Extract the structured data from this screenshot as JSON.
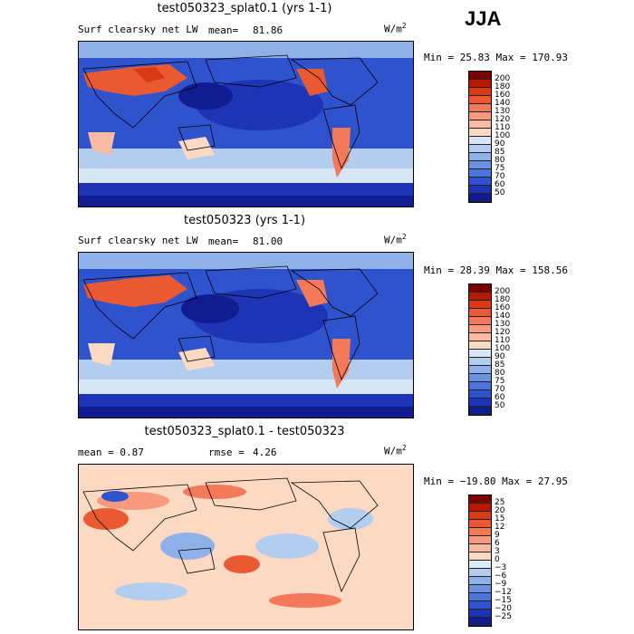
{
  "season": "JJA",
  "panels": [
    {
      "title": "test050323_splat0.1 (yrs 1-1)",
      "left_label": "Surf clearsky net LW",
      "stat_label": "mean=",
      "stat_value": "81.86",
      "units": "W/m",
      "units_exp": "2",
      "minmax": "Min =  25.83 Max = 170.93"
    },
    {
      "title": "test050323 (yrs 1-1)",
      "left_label": "Surf clearsky net LW",
      "stat_label": "mean=",
      "stat_value": "81.00",
      "units": "W/m",
      "units_exp": "2",
      "minmax": "Min =  28.39 Max = 158.56"
    },
    {
      "title": "test050323_splat0.1 - test050323",
      "left_label": "mean =   0.87",
      "stat_label": "rmse =",
      "stat_value": "4.26",
      "units": "W/m",
      "units_exp": "2",
      "minmax": "Min = −19.80 Max =  27.95"
    }
  ],
  "chart_data": [
    {
      "type": "heatmap",
      "title": "test050323_splat0.1 (yrs 1-1)",
      "variable": "Surf clearsky net LW",
      "units": "W/m^2",
      "mean": 81.86,
      "min": 25.83,
      "max": 170.93,
      "levels": [
        200,
        180,
        160,
        140,
        130,
        120,
        110,
        100,
        90,
        85,
        80,
        75,
        70,
        60,
        50
      ],
      "colors": [
        "#7a0000",
        "#b51a00",
        "#d93a13",
        "#ea5a32",
        "#f3795a",
        "#f89a7e",
        "#fbbaa2",
        "#fcd9c3",
        "#d6e6f4",
        "#b3cdee",
        "#8fb0e8",
        "#6c93e2",
        "#4c74db",
        "#2f52cd",
        "#1d34b6",
        "#101c8f"
      ]
    },
    {
      "type": "heatmap",
      "title": "test050323 (yrs 1-1)",
      "variable": "Surf clearsky net LW",
      "units": "W/m^2",
      "mean": 81.0,
      "min": 28.39,
      "max": 158.56,
      "levels": [
        200,
        180,
        160,
        140,
        130,
        120,
        110,
        100,
        90,
        85,
        80,
        75,
        70,
        60,
        50
      ],
      "colors": [
        "#7a0000",
        "#b51a00",
        "#d93a13",
        "#ea5a32",
        "#f3795a",
        "#f89a7e",
        "#fbbaa2",
        "#fcd9c3",
        "#d6e6f4",
        "#b3cdee",
        "#8fb0e8",
        "#6c93e2",
        "#4c74db",
        "#2f52cd",
        "#1d34b6",
        "#101c8f"
      ]
    },
    {
      "type": "heatmap",
      "title": "test050323_splat0.1 - test050323",
      "units": "W/m^2",
      "mean": 0.87,
      "rmse": 4.26,
      "min": -19.8,
      "max": 27.95,
      "levels": [
        "25",
        "20",
        "15",
        "12",
        "9",
        "6",
        "3",
        "0",
        "−3",
        "−6",
        "−9",
        "−12",
        "−15",
        "−20",
        "−25"
      ],
      "colors": [
        "#7a0000",
        "#b51a00",
        "#d93a13",
        "#ea5a32",
        "#f3795a",
        "#f89a7e",
        "#fbbaa2",
        "#fcd9c3",
        "#dfeaf6",
        "#b3cdee",
        "#8fb0e8",
        "#6c93e2",
        "#4c74db",
        "#2f52cd",
        "#1d34b6",
        "#101c8f"
      ]
    }
  ]
}
